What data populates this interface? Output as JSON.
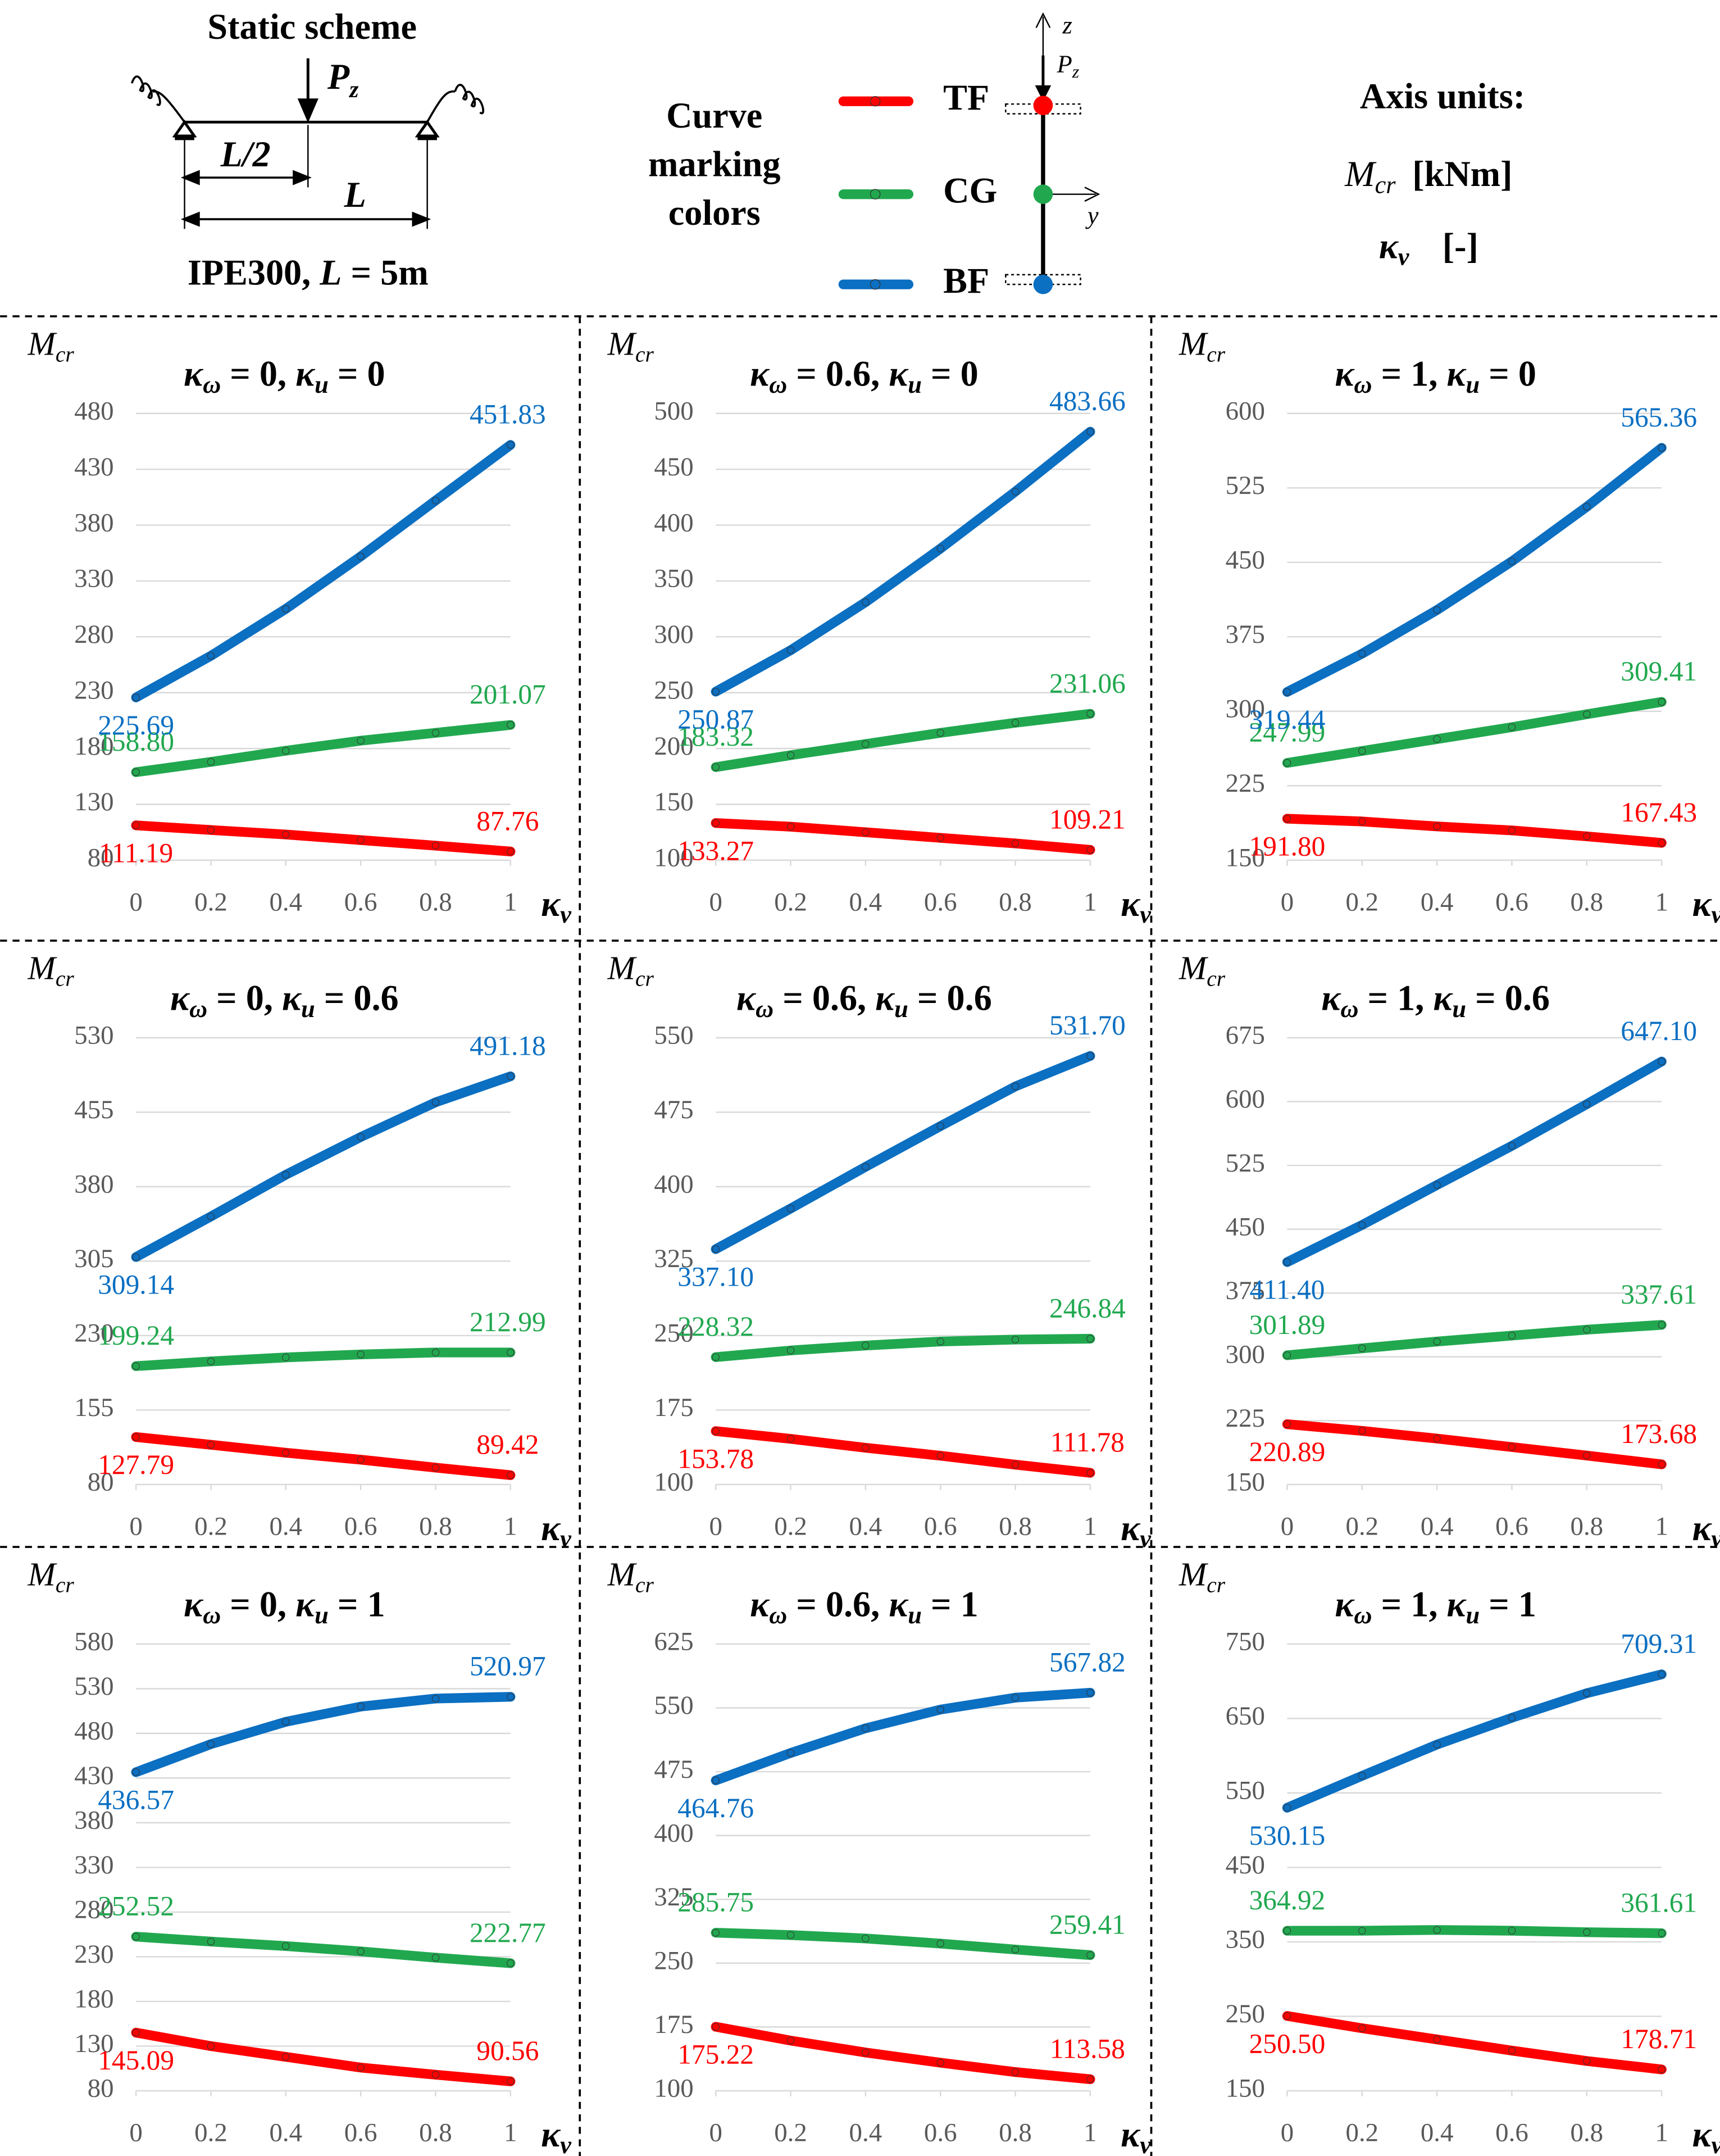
{
  "scheme": {
    "title": "Static scheme",
    "load": [
      "P",
      "z"
    ],
    "half": "L/2",
    "span": "L",
    "section": [
      "IPE300, ",
      "L",
      " = 5m"
    ]
  },
  "legend": {
    "title": [
      "Curve",
      "marking",
      "colors"
    ]
  },
  "section_axes": {
    "z": "z",
    "load": [
      "P",
      "z"
    ],
    "y": "y"
  },
  "units": {
    "title": "Axis units:",
    "moment": [
      "M",
      "cr",
      "[kNm]"
    ],
    "ratio": [
      "κ",
      "ν",
      "[-]"
    ]
  },
  "chart_data": [
    {
      "type": "line",
      "title": [
        "κ",
        "ω",
        " = 0, ",
        "κ",
        "u",
        " = 0"
      ],
      "y_label": [
        "M",
        "cr"
      ],
      "x_label": [
        "κ",
        "ν"
      ],
      "grid": true,
      "x": [
        0,
        0.2,
        0.4,
        0.6,
        0.8,
        1
      ],
      "xlim": [
        0,
        1
      ],
      "xticks": [
        0,
        0.2,
        0.4,
        0.6,
        0.8,
        1
      ],
      "ylim": [
        80,
        480
      ],
      "yticks": [
        80,
        130,
        180,
        230,
        280,
        330,
        380,
        430,
        480
      ],
      "series": [
        {
          "name": "TF",
          "color": "#ff0000",
          "values": [
            111.19,
            107,
            103,
            98,
            93,
            87.76
          ],
          "value_labels": [
            "111.19",
            null,
            null,
            null,
            null,
            "87.76"
          ]
        },
        {
          "name": "CG",
          "color": "#21a84f",
          "values": [
            158.8,
            168,
            178,
            187,
            194,
            201.07
          ],
          "value_labels": [
            "158.80",
            null,
            null,
            null,
            null,
            "201.07"
          ]
        },
        {
          "name": "BF",
          "color": "#0b6fc2",
          "values": [
            225.69,
            263,
            305,
            352,
            402,
            451.83
          ],
          "value_labels": [
            "225.69",
            null,
            null,
            null,
            null,
            "451.83"
          ]
        }
      ]
    },
    {
      "type": "line",
      "title": [
        "κ",
        "ω",
        " = 0.6, ",
        "κ",
        "u",
        " = 0"
      ],
      "y_label": [
        "M",
        "cr"
      ],
      "x_label": [
        "κ",
        "ν"
      ],
      "grid": true,
      "x": [
        0,
        0.2,
        0.4,
        0.6,
        0.8,
        1
      ],
      "xlim": [
        0,
        1
      ],
      "xticks": [
        0,
        0.2,
        0.4,
        0.6,
        0.8,
        1
      ],
      "ylim": [
        100,
        500
      ],
      "yticks": [
        100,
        150,
        200,
        250,
        300,
        350,
        400,
        450,
        500
      ],
      "series": [
        {
          "color": "#ff0000",
          "values": [
            133.27,
            130,
            125,
            120,
            115,
            109.21
          ],
          "value_labels": [
            "133.27",
            null,
            null,
            null,
            null,
            "109.21"
          ]
        },
        {
          "color": "#21a84f",
          "values": [
            183.32,
            194,
            204,
            214,
            223,
            231.06
          ],
          "value_labels": [
            "183.32",
            null,
            null,
            null,
            null,
            "231.06"
          ]
        },
        {
          "color": "#0b6fc2",
          "values": [
            250.87,
            288,
            331,
            379,
            430,
            483.66
          ],
          "value_labels": [
            "250.87",
            null,
            null,
            null,
            null,
            "483.66"
          ]
        }
      ]
    },
    {
      "type": "line",
      "title": [
        "κ",
        "ω",
        " = 1, ",
        "κ",
        "u",
        " = 0"
      ],
      "y_label": [
        "M",
        "cr"
      ],
      "x_label": [
        "κ",
        "ν"
      ],
      "grid": true,
      "x": [
        0,
        0.2,
        0.4,
        0.6,
        0.8,
        1
      ],
      "xlim": [
        0,
        1
      ],
      "xticks": [
        0,
        0.2,
        0.4,
        0.6,
        0.8,
        1
      ],
      "ylim": [
        150,
        600
      ],
      "yticks": [
        150,
        225,
        300,
        375,
        450,
        525,
        600
      ],
      "series": [
        {
          "color": "#ff0000",
          "values": [
            191.8,
            189,
            184,
            180,
            174,
            167.43
          ],
          "value_labels": [
            "191.80",
            null,
            null,
            null,
            null,
            "167.43"
          ]
        },
        {
          "color": "#21a84f",
          "values": [
            247.99,
            260,
            272,
            284,
            297,
            309.41
          ],
          "value_labels": [
            "247.99",
            null,
            null,
            null,
            null,
            "309.41"
          ]
        },
        {
          "color": "#0b6fc2",
          "values": [
            319.44,
            358,
            402,
            451,
            506,
            565.36
          ],
          "value_labels": [
            "319.44",
            null,
            null,
            null,
            null,
            "565.36"
          ]
        }
      ]
    },
    {
      "type": "line",
      "title": [
        "κ",
        "ω",
        " = 0, ",
        "κ",
        "u",
        " = 0.6"
      ],
      "y_label": [
        "M",
        "cr"
      ],
      "x_label": [
        "κ",
        "ν"
      ],
      "grid": true,
      "x": [
        0,
        0.2,
        0.4,
        0.6,
        0.8,
        1
      ],
      "xlim": [
        0,
        1
      ],
      "xticks": [
        0,
        0.2,
        0.4,
        0.6,
        0.8,
        1
      ],
      "ylim": [
        80,
        530
      ],
      "yticks": [
        80,
        155,
        230,
        305,
        380,
        455,
        530
      ],
      "series": [
        {
          "color": "#ff0000",
          "values": [
            127.79,
            120,
            112,
            105,
            97,
            89.42
          ],
          "value_labels": [
            "127.79",
            null,
            null,
            null,
            null,
            "89.42"
          ]
        },
        {
          "color": "#21a84f",
          "values": [
            199.24,
            204,
            208,
            211,
            213,
            212.99
          ],
          "value_labels": [
            "199.24",
            null,
            null,
            null,
            null,
            "212.99"
          ]
        },
        {
          "color": "#0b6fc2",
          "values": [
            309.14,
            350,
            392,
            430,
            465,
            491.18
          ],
          "value_labels": [
            "309.14",
            null,
            null,
            null,
            null,
            "491.18"
          ]
        }
      ]
    },
    {
      "type": "line",
      "title": [
        "κ",
        "ω",
        " = 0.6, ",
        "κ",
        "u",
        " = 0.6"
      ],
      "y_label": [
        "M",
        "cr"
      ],
      "x_label": [
        "κ",
        "ν"
      ],
      "grid": true,
      "x": [
        0,
        0.2,
        0.4,
        0.6,
        0.8,
        1
      ],
      "xlim": [
        0,
        1
      ],
      "xticks": [
        0,
        0.2,
        0.4,
        0.6,
        0.8,
        1
      ],
      "ylim": [
        100,
        550
      ],
      "yticks": [
        100,
        175,
        250,
        325,
        400,
        475,
        550
      ],
      "series": [
        {
          "color": "#ff0000",
          "values": [
            153.78,
            146,
            137,
            129,
            120,
            111.78
          ],
          "value_labels": [
            "153.78",
            null,
            null,
            null,
            null,
            "111.78"
          ]
        },
        {
          "color": "#21a84f",
          "values": [
            228.32,
            235,
            240,
            244,
            246,
            246.84
          ],
          "value_labels": [
            "228.32",
            null,
            null,
            null,
            null,
            "246.84"
          ]
        },
        {
          "color": "#0b6fc2",
          "values": [
            337.1,
            378,
            420,
            461,
            501,
            531.7
          ],
          "value_labels": [
            "337.10",
            null,
            null,
            null,
            null,
            "531.70"
          ]
        }
      ]
    },
    {
      "type": "line",
      "title": [
        "κ",
        "ω",
        " = 1, ",
        "κ",
        "u",
        " = 0.6"
      ],
      "y_label": [
        "M",
        "cr"
      ],
      "x_label": [
        "κ",
        "ν"
      ],
      "grid": true,
      "x": [
        0,
        0.2,
        0.4,
        0.6,
        0.8,
        1
      ],
      "xlim": [
        0,
        1
      ],
      "xticks": [
        0,
        0.2,
        0.4,
        0.6,
        0.8,
        1
      ],
      "ylim": [
        150,
        675
      ],
      "yticks": [
        150,
        225,
        300,
        375,
        450,
        525,
        600,
        675
      ],
      "series": [
        {
          "color": "#ff0000",
          "values": [
            220.89,
            213,
            204,
            194,
            184,
            173.68
          ],
          "value_labels": [
            "220.89",
            null,
            null,
            null,
            null,
            "173.68"
          ]
        },
        {
          "color": "#21a84f",
          "values": [
            301.89,
            310,
            318,
            325,
            332,
            337.61
          ],
          "value_labels": [
            "301.89",
            null,
            null,
            null,
            null,
            "337.61"
          ]
        },
        {
          "color": "#0b6fc2",
          "values": [
            411.4,
            455,
            502,
            548,
            597,
            647.1
          ],
          "value_labels": [
            "411.40",
            null,
            null,
            null,
            null,
            "647.10"
          ]
        }
      ]
    },
    {
      "type": "line",
      "title": [
        "κ",
        "ω",
        " = 0, ",
        "κ",
        "u",
        " = 1"
      ],
      "y_label": [
        "M",
        "cr"
      ],
      "x_label": [
        "κ",
        "ν"
      ],
      "grid": true,
      "x": [
        0,
        0.2,
        0.4,
        0.6,
        0.8,
        1
      ],
      "xlim": [
        0,
        1
      ],
      "xticks": [
        0,
        0.2,
        0.4,
        0.6,
        0.8,
        1
      ],
      "ylim": [
        80,
        580
      ],
      "yticks": [
        80,
        130,
        180,
        230,
        280,
        330,
        380,
        430,
        480,
        530,
        580
      ],
      "series": [
        {
          "color": "#ff0000",
          "values": [
            145.09,
            130,
            118,
            106,
            98,
            90.56
          ],
          "value_labels": [
            "145.09",
            null,
            null,
            null,
            null,
            "90.56"
          ]
        },
        {
          "color": "#21a84f",
          "values": [
            252.52,
            247,
            242,
            236,
            229,
            222.77
          ],
          "value_labels": [
            "252.52",
            null,
            null,
            null,
            null,
            "222.77"
          ]
        },
        {
          "color": "#0b6fc2",
          "values": [
            436.57,
            468,
            493,
            510,
            519,
            520.97
          ],
          "value_labels": [
            "436.57",
            null,
            null,
            null,
            null,
            "520.97"
          ]
        }
      ]
    },
    {
      "type": "line",
      "title": [
        "κ",
        "ω",
        " = 0.6, ",
        "κ",
        "u",
        " = 1"
      ],
      "y_label": [
        "M",
        "cr"
      ],
      "x_label": [
        "κ",
        "ν"
      ],
      "grid": true,
      "x": [
        0,
        0.2,
        0.4,
        0.6,
        0.8,
        1
      ],
      "xlim": [
        0,
        1
      ],
      "xticks": [
        0,
        0.2,
        0.4,
        0.6,
        0.8,
        1
      ],
      "ylim": [
        100,
        625
      ],
      "yticks": [
        100,
        175,
        250,
        325,
        400,
        475,
        550,
        625
      ],
      "series": [
        {
          "color": "#ff0000",
          "values": [
            175.22,
            159,
            145,
            133,
            122,
            113.58
          ],
          "value_labels": [
            "175.22",
            null,
            null,
            null,
            null,
            "113.58"
          ]
        },
        {
          "color": "#21a84f",
          "values": [
            285.75,
            283,
            279,
            273,
            266,
            259.41
          ],
          "value_labels": [
            "285.75",
            null,
            null,
            null,
            null,
            "259.41"
          ]
        },
        {
          "color": "#0b6fc2",
          "values": [
            464.76,
            497,
            526,
            548,
            562,
            567.82
          ],
          "value_labels": [
            "464.76",
            null,
            null,
            null,
            null,
            "567.82"
          ]
        }
      ]
    },
    {
      "type": "line",
      "title": [
        "κ",
        "ω",
        " = 1, ",
        "κ",
        "u",
        " = 1"
      ],
      "y_label": [
        "M",
        "cr"
      ],
      "x_label": [
        "κ",
        "ν"
      ],
      "grid": true,
      "x": [
        0,
        0.2,
        0.4,
        0.6,
        0.8,
        1
      ],
      "xlim": [
        0,
        1
      ],
      "xticks": [
        0,
        0.2,
        0.4,
        0.6,
        0.8,
        1
      ],
      "ylim": [
        150,
        750
      ],
      "yticks": [
        150,
        250,
        350,
        450,
        550,
        650,
        750
      ],
      "series": [
        {
          "color": "#ff0000",
          "values": [
            250.5,
            234,
            219,
            204,
            190,
            178.71
          ],
          "value_labels": [
            "250.50",
            null,
            null,
            null,
            null,
            "178.71"
          ]
        },
        {
          "color": "#21a84f",
          "values": [
            364.92,
            365,
            366,
            365,
            363,
            361.61
          ],
          "value_labels": [
            "364.92",
            null,
            null,
            null,
            null,
            "361.61"
          ]
        },
        {
          "color": "#0b6fc2",
          "values": [
            530.15,
            573,
            615,
            651,
            684,
            709.31
          ],
          "value_labels": [
            "530.15",
            null,
            null,
            null,
            null,
            "709.31"
          ]
        }
      ]
    }
  ]
}
